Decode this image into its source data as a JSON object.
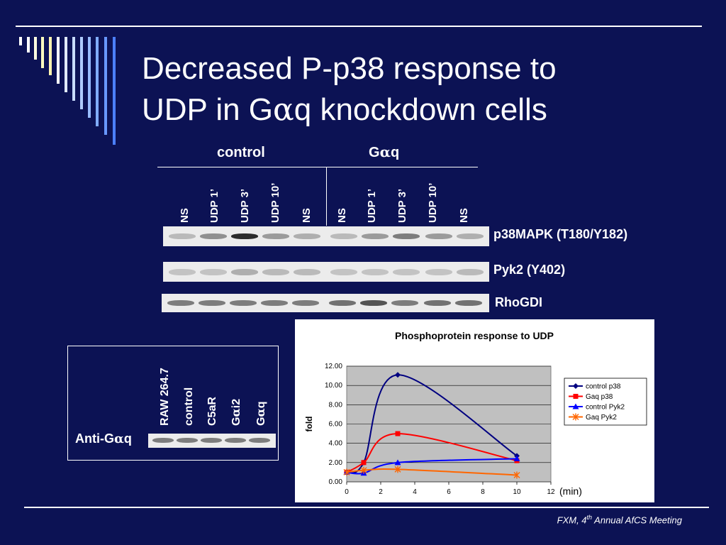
{
  "title": {
    "line1": "Decreased P-p38 response to",
    "line2_prefix": "UDP in G",
    "line2_alpha": "α",
    "line2_suffix": "q knockdown cells"
  },
  "blot": {
    "groups": [
      {
        "label": "control"
      },
      {
        "prefix": "G",
        "alpha": "α",
        "suffix": "q"
      }
    ],
    "lanes": [
      "NS",
      "UDP 1’",
      "UDP 3’",
      "UDP 10’",
      "NS",
      "NS",
      "UDP 1’",
      "UDP 3’",
      "UDP 10’",
      "NS"
    ],
    "rows": [
      {
        "label": "p38MAPK (T180/Y182)"
      },
      {
        "label": "Pyk2 (Y402)"
      },
      {
        "label": "RhoGDI"
      }
    ]
  },
  "inset": {
    "lanes": [
      {
        "text": "RAW 264.7"
      },
      {
        "text": "control"
      },
      {
        "text": "C5aR"
      },
      {
        "prefix": "G",
        "alpha": "α",
        "suffix": "i2"
      },
      {
        "prefix": "G",
        "alpha": "α",
        "suffix": "q"
      }
    ],
    "row_prefix": "Anti-G",
    "row_alpha": "α",
    "row_suffix": "q"
  },
  "chart_data": {
    "type": "line",
    "title": "Phosphoprotein response to UDP",
    "ylabel": "fold",
    "xlabel": "",
    "x_unit_note": "(min)",
    "xlim": [
      0,
      12
    ],
    "ylim": [
      0,
      12
    ],
    "x_ticks": [
      "0",
      "2",
      "4",
      "6",
      "8",
      "10",
      "12"
    ],
    "y_ticks": [
      "0.00",
      "2.00",
      "4.00",
      "6.00",
      "8.00",
      "10.00",
      "12.00"
    ],
    "grid": true,
    "legend_position": "right",
    "x": [
      0,
      1,
      3,
      10
    ],
    "series": [
      {
        "name": "control p38",
        "values": [
          1.0,
          2.0,
          11.1,
          2.7
        ],
        "color": "#000080",
        "marker": "diamond"
      },
      {
        "name": "Gaq p38",
        "values": [
          1.0,
          2.0,
          5.0,
          2.2
        ],
        "color": "#ff0000",
        "marker": "square"
      },
      {
        "name": "control Pyk2",
        "values": [
          1.0,
          0.9,
          2.0,
          2.4
        ],
        "color": "#0000ff",
        "marker": "triangle"
      },
      {
        "name": "Gaq Pyk2",
        "values": [
          1.0,
          1.2,
          1.3,
          0.7
        ],
        "color": "#ff6600",
        "marker": "star"
      }
    ]
  },
  "footer": {
    "prefix": "FXM, 4",
    "sup": "th",
    "suffix": " Annual AfCS Meeting"
  }
}
